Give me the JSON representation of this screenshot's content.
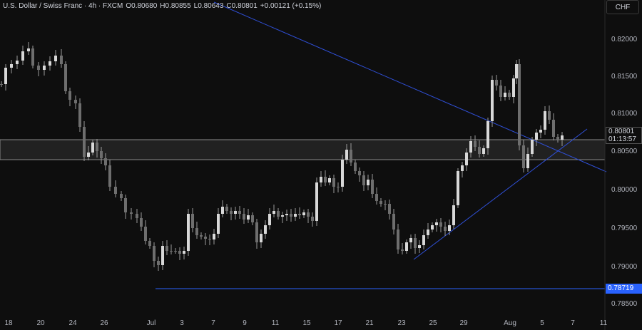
{
  "header": {
    "symbol": "U.S. Dollar / Swiss Franc · 4h · FXCM",
    "open": "O0.80680",
    "high": "H0.80855",
    "low": "L0.80643",
    "close": "C0.80801",
    "change": "+0.00121 (+0.15%)"
  },
  "currency_button": "CHF",
  "price_tags": {
    "current_price": "0.80801",
    "countdown": "01:13:57",
    "low_level": "0.78719"
  },
  "colors": {
    "background": "#0e0e0e",
    "candle": "#9a9a9a",
    "trendline": "#2f4fd6",
    "zone": "#6c6c6c",
    "low_line": "#2962ff"
  },
  "chart_data": {
    "type": "candlestick",
    "y_ticks": [
      "0.82000",
      "0.81500",
      "0.81000",
      "0.80500",
      "0.80000",
      "0.79500",
      "0.79000",
      "0.78500"
    ],
    "x_ticks": [
      "18",
      "20",
      "24",
      "26",
      "Jul",
      "3",
      "7",
      "9",
      "11",
      "15",
      "17",
      "21",
      "23",
      "25",
      "29",
      "Aug",
      "5",
      "7",
      "11"
    ],
    "ylim": [
      0.7835,
      0.8235
    ],
    "support_zone": [
      0.8042,
      0.8069
    ],
    "horizontal_level": 0.78719,
    "grid": false,
    "legend": "none"
  }
}
